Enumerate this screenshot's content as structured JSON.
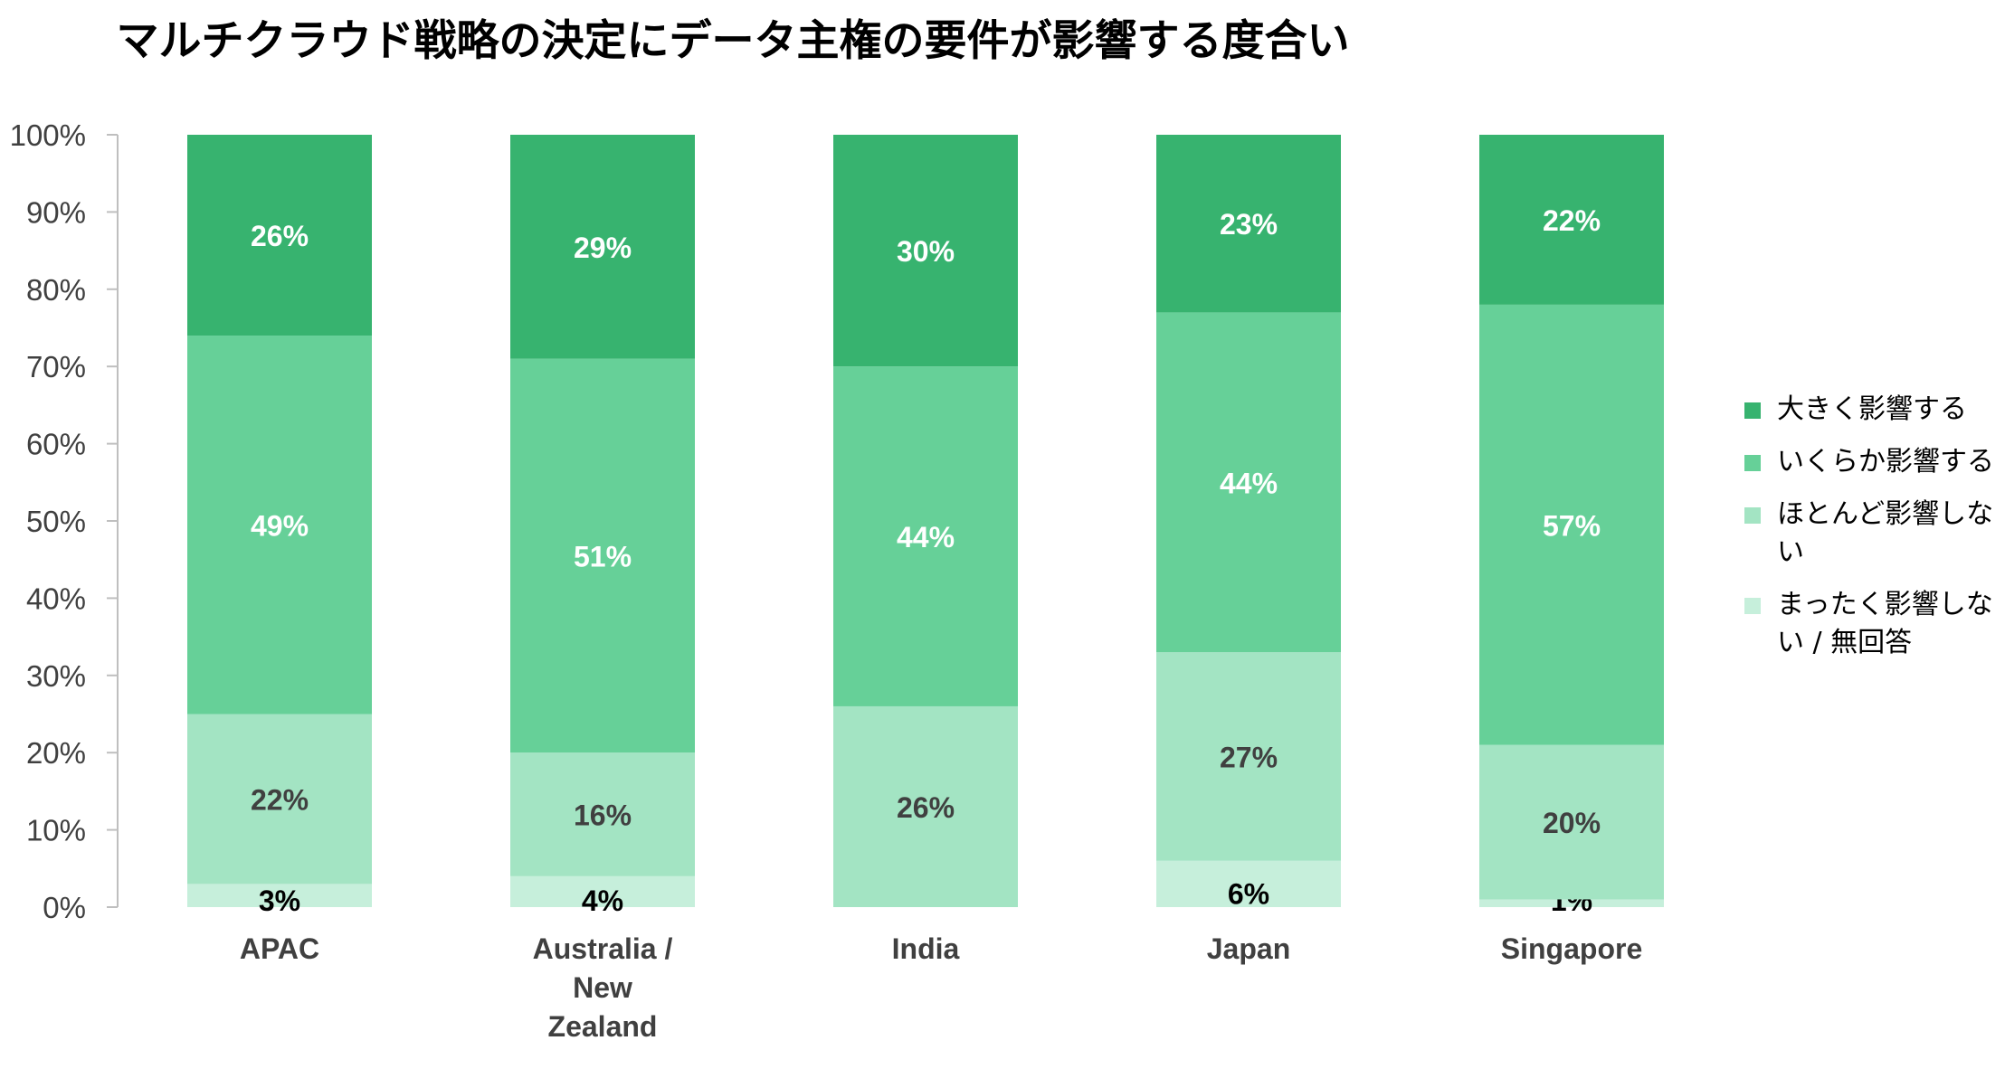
{
  "title": "マルチクラウド戦略の決定にデータ主権の要件が影響する度合い",
  "chart_data": {
    "type": "bar",
    "stacked": true,
    "title": "マルチクラウド戦略の決定にデータ主権の要件が影響する度合い",
    "categories": [
      "APAC",
      "Australia / New Zealand",
      "India",
      "Japan",
      "Singapore"
    ],
    "y_ticks": [
      "0%",
      "10%",
      "20%",
      "30%",
      "40%",
      "50%",
      "60%",
      "70%",
      "80%",
      "90%",
      "100%"
    ],
    "ylim": [
      0,
      100
    ],
    "grid": false,
    "legend_position": "right",
    "series": [
      {
        "name": "まったく影響しない / 無回答",
        "color": "#c6efdb",
        "label_color": "#000000",
        "values": [
          3,
          4,
          0,
          6,
          1
        ],
        "labels": [
          "3%",
          "4%",
          "",
          "6%",
          "1%"
        ]
      },
      {
        "name": "ほとんど影響しない",
        "color": "#a3e4c3",
        "label_color": "#404040",
        "values": [
          22,
          16,
          26,
          27,
          20
        ],
        "labels": [
          "22%",
          "16%",
          "26%",
          "27%",
          "20%"
        ]
      },
      {
        "name": "いくらか影響する",
        "color": "#66d098",
        "label_color": "#ffffff",
        "values": [
          49,
          51,
          44,
          44,
          57
        ],
        "labels": [
          "49%",
          "51%",
          "44%",
          "44%",
          "57%"
        ]
      },
      {
        "name": "大きく影響する",
        "color": "#37b36f",
        "label_color": "#ffffff",
        "values": [
          26,
          29,
          30,
          23,
          22
        ],
        "labels": [
          "26%",
          "29%",
          "30%",
          "23%",
          "22%"
        ]
      }
    ]
  },
  "legend": {
    "items": [
      {
        "label": "大きく影響する",
        "color": "#37b36f"
      },
      {
        "label": "いくらか影響する",
        "color": "#66d098"
      },
      {
        "label": "ほとんど影響しない",
        "color": "#a3e4c3"
      },
      {
        "label": "まったく影響しない / 無回答",
        "color": "#c6efdb"
      }
    ]
  }
}
